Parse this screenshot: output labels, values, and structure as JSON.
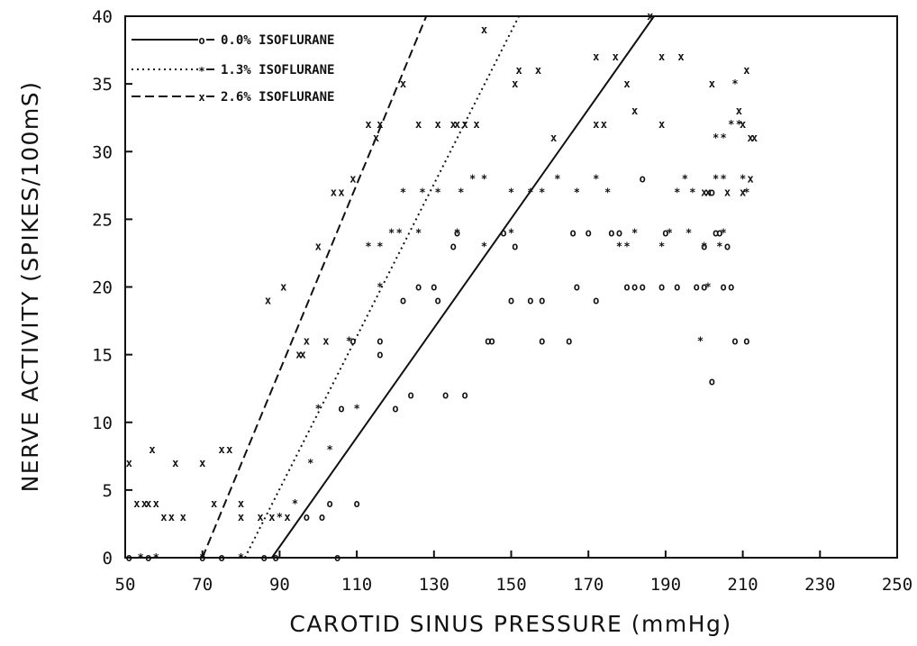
{
  "chart_data": {
    "type": "scatter",
    "title": "",
    "xlabel": "CAROTID SINUS PRESSURE (mmHg)",
    "ylabel": "NERVE ACTIVITY (SPIKES/100mS)",
    "xlim": [
      50,
      250
    ],
    "ylim": [
      0,
      40
    ],
    "xticks": [
      50,
      70,
      90,
      110,
      130,
      150,
      170,
      190,
      210,
      230,
      250
    ],
    "yticks": [
      0,
      5,
      10,
      15,
      20,
      25,
      30,
      35,
      40
    ],
    "xtick_labels": [
      "50",
      "70",
      "90",
      "110",
      "130",
      "150",
      "170",
      "190",
      "210",
      "230",
      "250"
    ],
    "ytick_labels": [
      "0",
      "5",
      "10",
      "15",
      "20",
      "25",
      "30",
      "35",
      "40"
    ],
    "grid": false,
    "legend_position": "top-left",
    "series": [
      {
        "name": "0.0% ISOFLURANE",
        "marker": "o",
        "line_style": "solid",
        "fit_line": [
          [
            88,
            0
          ],
          [
            187,
            40
          ]
        ],
        "points": [
          [
            51,
            0
          ],
          [
            56,
            0
          ],
          [
            70,
            0
          ],
          [
            75,
            0
          ],
          [
            86,
            0
          ],
          [
            89,
            0
          ],
          [
            105,
            0
          ],
          [
            97,
            3
          ],
          [
            101,
            3
          ],
          [
            103,
            4
          ],
          [
            110,
            4
          ],
          [
            106,
            11
          ],
          [
            120,
            11
          ],
          [
            124,
            12
          ],
          [
            133,
            12
          ],
          [
            138,
            12
          ],
          [
            109,
            16
          ],
          [
            116,
            16
          ],
          [
            116,
            15
          ],
          [
            144,
            16
          ],
          [
            145,
            16
          ],
          [
            158,
            16
          ],
          [
            165,
            16
          ],
          [
            122,
            19
          ],
          [
            131,
            19
          ],
          [
            150,
            19
          ],
          [
            155,
            19
          ],
          [
            158,
            19
          ],
          [
            172,
            19
          ],
          [
            126,
            20
          ],
          [
            130,
            20
          ],
          [
            167,
            20
          ],
          [
            180,
            20
          ],
          [
            182,
            20
          ],
          [
            184,
            20
          ],
          [
            189,
            20
          ],
          [
            193,
            20
          ],
          [
            198,
            20
          ],
          [
            200,
            20
          ],
          [
            205,
            20
          ],
          [
            207,
            20
          ],
          [
            208,
            16
          ],
          [
            211,
            16
          ],
          [
            202,
            13
          ],
          [
            135,
            23
          ],
          [
            151,
            23
          ],
          [
            136,
            24
          ],
          [
            148,
            24
          ],
          [
            166,
            24
          ],
          [
            170,
            24
          ],
          [
            176,
            24
          ],
          [
            178,
            24
          ],
          [
            190,
            24
          ],
          [
            204,
            24
          ],
          [
            206,
            23
          ],
          [
            203,
            24
          ],
          [
            200,
            23
          ],
          [
            184,
            28
          ],
          [
            202,
            27
          ]
        ]
      },
      {
        "name": "1.3% ISOFLURANE",
        "marker": "*",
        "line_style": "dotted",
        "fit_line": [
          [
            81,
            0
          ],
          [
            152,
            40
          ]
        ],
        "points": [
          [
            54,
            0
          ],
          [
            58,
            0
          ],
          [
            70,
            0
          ],
          [
            80,
            0
          ],
          [
            90,
            3
          ],
          [
            94,
            4
          ],
          [
            98,
            7
          ],
          [
            103,
            8
          ],
          [
            100,
            11
          ],
          [
            110,
            11
          ],
          [
            108,
            16
          ],
          [
            116,
            20
          ],
          [
            113,
            23
          ],
          [
            116,
            23
          ],
          [
            119,
            24
          ],
          [
            121,
            24
          ],
          [
            126,
            24
          ],
          [
            122,
            27
          ],
          [
            127,
            27
          ],
          [
            131,
            27
          ],
          [
            137,
            27
          ],
          [
            143,
            23
          ],
          [
            136,
            24
          ],
          [
            150,
            24
          ],
          [
            140,
            28
          ],
          [
            143,
            28
          ],
          [
            150,
            27
          ],
          [
            155,
            27
          ],
          [
            158,
            27
          ],
          [
            162,
            28
          ],
          [
            167,
            27
          ],
          [
            172,
            28
          ],
          [
            175,
            27
          ],
          [
            178,
            23
          ],
          [
            180,
            23
          ],
          [
            182,
            24
          ],
          [
            189,
            23
          ],
          [
            191,
            24
          ],
          [
            196,
            24
          ],
          [
            195,
            28
          ],
          [
            193,
            27
          ],
          [
            197,
            27
          ],
          [
            200,
            23
          ],
          [
            204,
            23
          ],
          [
            201,
            20
          ],
          [
            199,
            16
          ],
          [
            203,
            28
          ],
          [
            205,
            28
          ],
          [
            207,
            32
          ],
          [
            210,
            28
          ],
          [
            211,
            27
          ],
          [
            203,
            31
          ],
          [
            205,
            31
          ],
          [
            208,
            35
          ],
          [
            209,
            32
          ],
          [
            205,
            24
          ]
        ]
      },
      {
        "name": "2.6% ISOFLURANE",
        "marker": "x",
        "line_style": "dashed",
        "fit_line": [
          [
            70,
            0
          ],
          [
            128,
            40
          ]
        ],
        "points": [
          [
            51,
            7
          ],
          [
            53,
            4
          ],
          [
            55,
            4
          ],
          [
            56,
            4
          ],
          [
            57,
            8
          ],
          [
            58,
            4
          ],
          [
            60,
            3
          ],
          [
            62,
            3
          ],
          [
            63,
            7
          ],
          [
            65,
            3
          ],
          [
            70,
            7
          ],
          [
            73,
            4
          ],
          [
            75,
            8
          ],
          [
            77,
            8
          ],
          [
            80,
            3
          ],
          [
            80,
            4
          ],
          [
            85,
            3
          ],
          [
            88,
            3
          ],
          [
            92,
            3
          ],
          [
            87,
            19
          ],
          [
            91,
            20
          ],
          [
            95,
            15
          ],
          [
            96,
            15
          ],
          [
            97,
            16
          ],
          [
            100,
            23
          ],
          [
            102,
            16
          ],
          [
            104,
            27
          ],
          [
            106,
            27
          ],
          [
            109,
            28
          ],
          [
            113,
            32
          ],
          [
            116,
            32
          ],
          [
            115,
            31
          ],
          [
            122,
            35
          ],
          [
            126,
            32
          ],
          [
            131,
            32
          ],
          [
            135,
            32
          ],
          [
            136,
            32
          ],
          [
            138,
            32
          ],
          [
            141,
            32
          ],
          [
            143,
            39
          ],
          [
            151,
            35
          ],
          [
            152,
            36
          ],
          [
            157,
            36
          ],
          [
            161,
            31
          ],
          [
            172,
            37
          ],
          [
            177,
            37
          ],
          [
            172,
            32
          ],
          [
            174,
            32
          ],
          [
            180,
            35
          ],
          [
            182,
            33
          ],
          [
            186,
            40
          ],
          [
            189,
            37
          ],
          [
            194,
            37
          ],
          [
            189,
            32
          ],
          [
            202,
            35
          ],
          [
            201,
            27
          ],
          [
            200,
            27
          ],
          [
            206,
            27
          ],
          [
            209,
            33
          ],
          [
            211,
            36
          ],
          [
            210,
            32
          ],
          [
            212,
            31
          ],
          [
            213,
            31
          ],
          [
            210,
            27
          ],
          [
            212,
            28
          ]
        ]
      }
    ]
  }
}
